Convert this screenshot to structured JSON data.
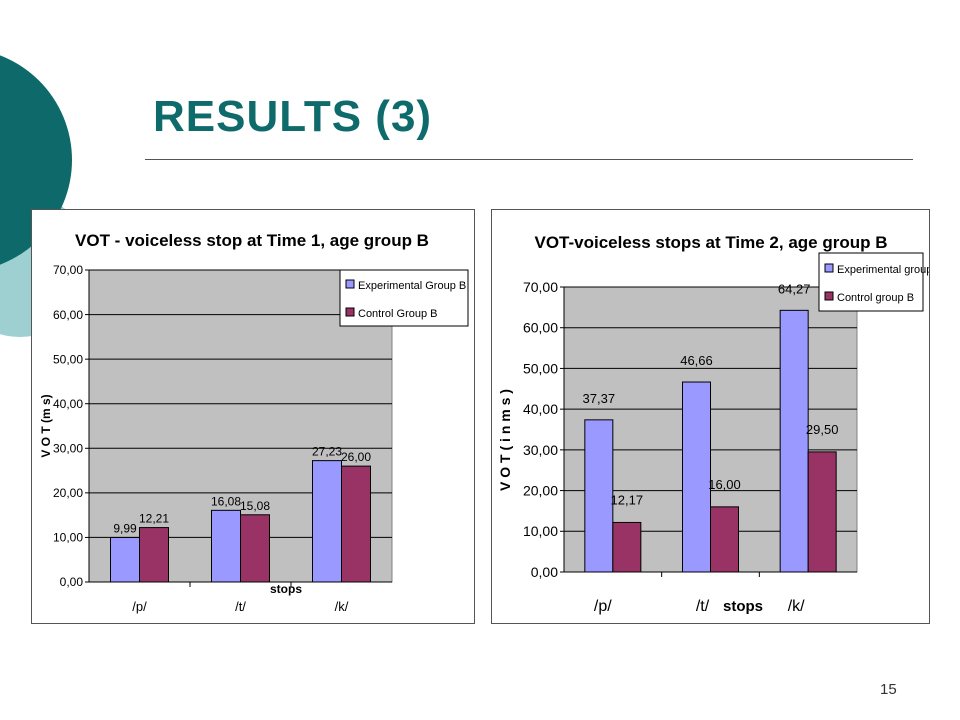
{
  "slide": {
    "title": "RESULTS (3)",
    "page_number": "15"
  },
  "colors": {
    "title": "#0f6b6b",
    "deco_dark": "#0e6a6a",
    "deco_light": "#9ecfd1",
    "plot_bg": "#c0c0c0",
    "experimental": "#9999ff",
    "control": "#993366"
  },
  "chart_data": [
    {
      "type": "bar",
      "title": "VOT - voiceless stop at Time 1, age group B",
      "xlabel": "stops",
      "ylabel": "V O T (m s)",
      "categories": [
        "/p/",
        "/t/",
        "/k/"
      ],
      "series": [
        {
          "name": "Experimental Group B",
          "values": [
            9.99,
            16.08,
            27.23
          ],
          "labels": [
            "9,99",
            "16,08",
            "27,23"
          ]
        },
        {
          "name": "Control Group B",
          "values": [
            12.21,
            15.08,
            26.0
          ],
          "labels": [
            "12,21",
            "15,08",
            "26,00"
          ]
        }
      ],
      "ylim": [
        0,
        70
      ],
      "yticks": [
        "0,00",
        "10,00",
        "20,00",
        "30,00",
        "40,00",
        "50,00",
        "60,00",
        "70,00"
      ],
      "grid": true,
      "legend_position": "top-right"
    },
    {
      "type": "bar",
      "title": "VOT-voiceless stops at Time 2, age group B",
      "xlabel": "stops",
      "ylabel": "V O T  ( i n  m s )",
      "categories": [
        "/p/",
        "/t/",
        "/k/"
      ],
      "series": [
        {
          "name": "Experimental group B",
          "values": [
            37.37,
            46.66,
            64.27
          ],
          "labels": [
            "37,37",
            "46,66",
            "64,27"
          ]
        },
        {
          "name": "Control group B",
          "values": [
            12.17,
            16.0,
            29.5
          ],
          "labels": [
            "12,17",
            "16,00",
            "29,50"
          ]
        }
      ],
      "ylim": [
        0,
        70
      ],
      "yticks": [
        "0,00",
        "10,00",
        "20,00",
        "30,00",
        "40,00",
        "50,00",
        "60,00",
        "70,00"
      ],
      "grid": true,
      "legend_position": "top-right"
    }
  ]
}
